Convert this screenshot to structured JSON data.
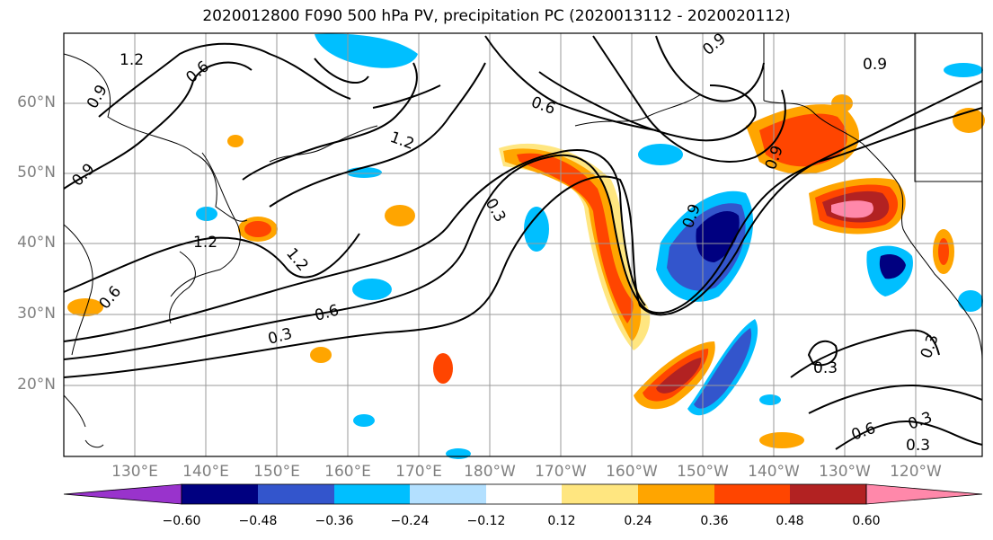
{
  "title": "2020012800 F090 500 hPa PV, precipitation PC (2020013112 - 2020020112)",
  "lat_labels": [
    "60°N",
    "50°N",
    "40°N",
    "30°N",
    "20°N"
  ],
  "lon_labels": [
    "130°E",
    "140°E",
    "150°E",
    "160°E",
    "170°E",
    "180°W",
    "170°W",
    "160°W",
    "150°W",
    "140°W",
    "130°W",
    "120°W"
  ],
  "contour_labels": [
    "1.2",
    "0.6",
    "0.9",
    "0.9",
    "0.9",
    "1.2",
    "1.2",
    "0.6",
    "0.3",
    "0.9",
    "0.3",
    "0.6",
    "0.3",
    "0.6",
    "0.3",
    "0.9",
    "0.3",
    "0.9",
    "1.2",
    "0.3",
    "0.6"
  ],
  "colorbar": {
    "ticks": [
      "−0.60",
      "−0.48",
      "−0.36",
      "−0.24",
      "−0.12",
      "0.12",
      "0.24",
      "0.36",
      "0.48",
      "0.60"
    ],
    "colors": [
      "#9933cc",
      "#000080",
      "#3355cc",
      "#00bfff",
      "#b3e0ff",
      "#ffffff",
      "#ffe680",
      "#ffa500",
      "#ff4500",
      "#b22222",
      "#ff88aa"
    ]
  }
}
